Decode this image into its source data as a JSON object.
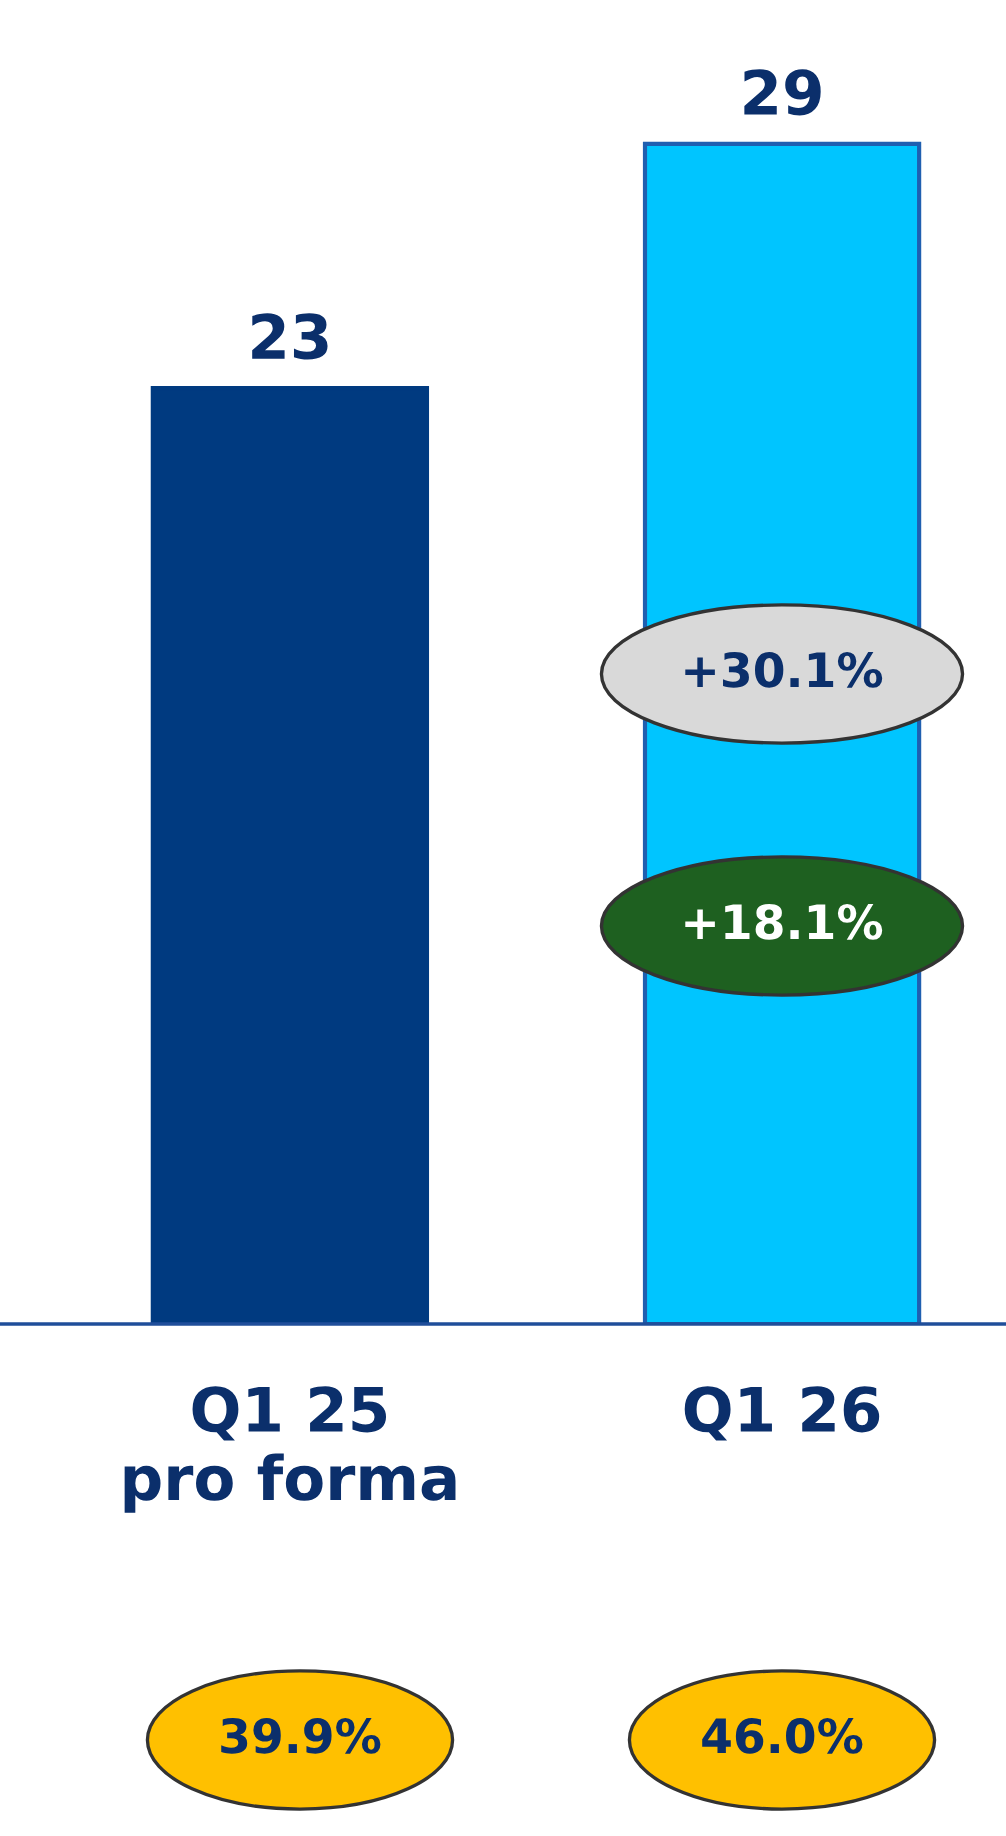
{
  "chart_data": {
    "type": "bar",
    "categories": [
      "Q1 25\npro forma",
      "Q1 26"
    ],
    "values": [
      23,
      29
    ],
    "colors": [
      "#003a80",
      "#00c5ff"
    ],
    "data_labels": true,
    "annotations": [
      "+30.1%",
      "+18.1%",
      "39.9%",
      "46.0%"
    ]
  }
}
